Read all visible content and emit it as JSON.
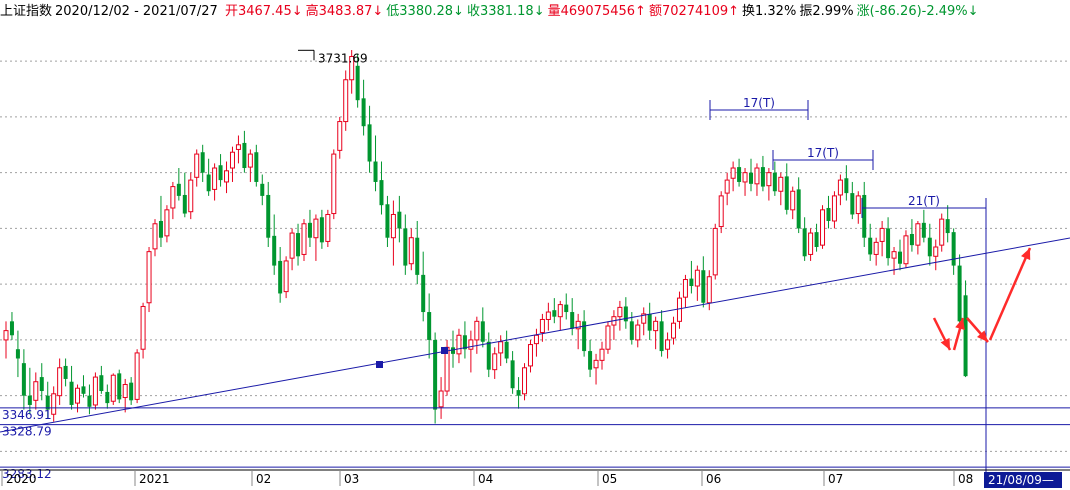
{
  "info": {
    "index_name": "上证指数",
    "date_range": "2020/12/02 - 2021/07/27",
    "open": "开3467.45↓",
    "high": "高3483.87↓",
    "low": "低3380.28↓",
    "close": "收3381.18↓",
    "volume": "量469075456↑",
    "amount": "额70274109↑",
    "turnover": "换1.32%",
    "amplitude": "振2.99%",
    "change": "涨(-86.26)-2.49%↓"
  },
  "colors": {
    "up": "#e8001c",
    "down": "#00962f",
    "grid": "#a0a0a0",
    "annotation": "#1a1aa8",
    "arrow": "#ff2b2b",
    "axis_text": "#000000",
    "watermark": "#d8d8d8"
  },
  "chart_data": {
    "type": "candlestick",
    "ylim": [
      3280,
      3760
    ],
    "grid": "dashed horizontal",
    "x_ticks": [
      "2020",
      "2021",
      "02",
      "03",
      "04",
      "05",
      "06",
      "07",
      "08"
    ],
    "price_labels": [
      "3346.91",
      "3328.79",
      "3283.12"
    ],
    "peak_label": "3731.69",
    "annotations": [
      "17(T)",
      "17(T)",
      "21(T)"
    ],
    "cursor_date": "21/08/09",
    "support_points": [
      {
        "date": "2021/03/09",
        "value": 3328.79
      },
      {
        "date": "2021/03/25",
        "value": 3346.91
      }
    ],
    "candles": [
      [
        3420,
        3440,
        3400,
        3430
      ],
      [
        3440,
        3450,
        3420,
        3425
      ],
      [
        3410,
        3430,
        3380,
        3400
      ],
      [
        3395,
        3410,
        3345,
        3360
      ],
      [
        3360,
        3390,
        3340,
        3350
      ],
      [
        3355,
        3385,
        3345,
        3375
      ],
      [
        3380,
        3395,
        3355,
        3365
      ],
      [
        3360,
        3375,
        3335,
        3345
      ],
      [
        3340,
        3370,
        3332,
        3362
      ],
      [
        3360,
        3400,
        3350,
        3390
      ],
      [
        3392,
        3400,
        3370,
        3378
      ],
      [
        3375,
        3392,
        3345,
        3350
      ],
      [
        3352,
        3372,
        3342,
        3368
      ],
      [
        3370,
        3382,
        3358,
        3362
      ],
      [
        3360,
        3372,
        3340,
        3348
      ],
      [
        3350,
        3385,
        3345,
        3380
      ],
      [
        3382,
        3392,
        3362,
        3365
      ],
      [
        3364,
        3372,
        3346,
        3352
      ],
      [
        3354,
        3384,
        3350,
        3382
      ],
      [
        3384,
        3388,
        3352,
        3356
      ],
      [
        3358,
        3378,
        3342,
        3372
      ],
      [
        3374,
        3380,
        3350,
        3355
      ],
      [
        3356,
        3410,
        3352,
        3406
      ],
      [
        3410,
        3460,
        3400,
        3456
      ],
      [
        3460,
        3520,
        3450,
        3515
      ],
      [
        3518,
        3550,
        3510,
        3545
      ],
      [
        3548,
        3575,
        3520,
        3530
      ],
      [
        3532,
        3565,
        3525,
        3560
      ],
      [
        3562,
        3590,
        3550,
        3585
      ],
      [
        3588,
        3605,
        3570,
        3575
      ],
      [
        3576,
        3600,
        3552,
        3556
      ],
      [
        3558,
        3600,
        3550,
        3592
      ],
      [
        3595,
        3625,
        3585,
        3620
      ],
      [
        3622,
        3630,
        3590,
        3600
      ],
      [
        3598,
        3615,
        3575,
        3580
      ],
      [
        3582,
        3610,
        3570,
        3605
      ],
      [
        3608,
        3620,
        3585,
        3592
      ],
      [
        3590,
        3612,
        3578,
        3602
      ],
      [
        3605,
        3628,
        3590,
        3622
      ],
      [
        3625,
        3640,
        3610,
        3630
      ],
      [
        3632,
        3645,
        3600,
        3605
      ],
      [
        3606,
        3625,
        3590,
        3620
      ],
      [
        3622,
        3630,
        3585,
        3590
      ],
      [
        3588,
        3598,
        3565,
        3575
      ],
      [
        3576,
        3590,
        3520,
        3530
      ],
      [
        3532,
        3555,
        3490,
        3500
      ],
      [
        3505,
        3520,
        3460,
        3470
      ],
      [
        3472,
        3510,
        3465,
        3505
      ],
      [
        3508,
        3540,
        3495,
        3535
      ],
      [
        3535,
        3545,
        3500,
        3510
      ],
      [
        3512,
        3550,
        3505,
        3545
      ],
      [
        3546,
        3560,
        3520,
        3530
      ],
      [
        3530,
        3555,
        3505,
        3550
      ],
      [
        3552,
        3560,
        3518,
        3525
      ],
      [
        3526,
        3560,
        3520,
        3555
      ],
      [
        3556,
        3625,
        3550,
        3620
      ],
      [
        3624,
        3660,
        3615,
        3655
      ],
      [
        3655,
        3710,
        3645,
        3700
      ],
      [
        3700,
        3732,
        3685,
        3725
      ],
      [
        3715,
        3728,
        3670,
        3678
      ],
      [
        3680,
        3700,
        3640,
        3650
      ],
      [
        3652,
        3672,
        3600,
        3612
      ],
      [
        3612,
        3640,
        3580,
        3590
      ],
      [
        3592,
        3612,
        3555,
        3565
      ],
      [
        3566,
        3575,
        3520,
        3530
      ],
      [
        3530,
        3570,
        3500,
        3555
      ],
      [
        3558,
        3575,
        3525,
        3540
      ],
      [
        3540,
        3555,
        3490,
        3500
      ],
      [
        3502,
        3540,
        3495,
        3530
      ],
      [
        3530,
        3548,
        3480,
        3490
      ],
      [
        3490,
        3515,
        3440,
        3450
      ],
      [
        3450,
        3470,
        3400,
        3420
      ],
      [
        3420,
        3428,
        3330,
        3345
      ],
      [
        3348,
        3380,
        3335,
        3365
      ],
      [
        3365,
        3420,
        3360,
        3412
      ],
      [
        3412,
        3430,
        3390,
        3405
      ],
      [
        3405,
        3432,
        3395,
        3425
      ],
      [
        3425,
        3440,
        3400,
        3410
      ],
      [
        3410,
        3430,
        3385,
        3420
      ],
      [
        3420,
        3445,
        3405,
        3440
      ],
      [
        3440,
        3455,
        3412,
        3418
      ],
      [
        3418,
        3428,
        3380,
        3388
      ],
      [
        3388,
        3412,
        3378,
        3405
      ],
      [
        3406,
        3425,
        3392,
        3418
      ],
      [
        3418,
        3430,
        3395,
        3400
      ],
      [
        3398,
        3408,
        3362,
        3368
      ],
      [
        3366,
        3380,
        3346,
        3360
      ],
      [
        3362,
        3395,
        3355,
        3390
      ],
      [
        3392,
        3420,
        3385,
        3415
      ],
      [
        3416,
        3432,
        3402,
        3425
      ],
      [
        3428,
        3448,
        3418,
        3442
      ],
      [
        3442,
        3460,
        3430,
        3450
      ],
      [
        3452,
        3465,
        3438,
        3445
      ],
      [
        3445,
        3462,
        3430,
        3458
      ],
      [
        3458,
        3470,
        3442,
        3450
      ],
      [
        3450,
        3465,
        3425,
        3432
      ],
      [
        3432,
        3448,
        3410,
        3440
      ],
      [
        3440,
        3452,
        3402,
        3408
      ],
      [
        3408,
        3420,
        3380,
        3388
      ],
      [
        3390,
        3405,
        3372,
        3398
      ],
      [
        3398,
        3418,
        3388,
        3410
      ],
      [
        3410,
        3440,
        3405,
        3435
      ],
      [
        3436,
        3452,
        3420,
        3445
      ],
      [
        3445,
        3462,
        3430,
        3455
      ],
      [
        3456,
        3466,
        3432,
        3440
      ],
      [
        3440,
        3450,
        3415,
        3420
      ],
      [
        3420,
        3442,
        3412,
        3436
      ],
      [
        3438,
        3455,
        3425,
        3448
      ],
      [
        3448,
        3460,
        3420,
        3430
      ],
      [
        3430,
        3445,
        3410,
        3440
      ],
      [
        3440,
        3452,
        3402,
        3408
      ],
      [
        3410,
        3428,
        3400,
        3420
      ],
      [
        3422,
        3445,
        3415,
        3438
      ],
      [
        3440,
        3472,
        3432,
        3465
      ],
      [
        3466,
        3490,
        3455,
        3485
      ],
      [
        3486,
        3505,
        3470,
        3478
      ],
      [
        3478,
        3500,
        3462,
        3495
      ],
      [
        3495,
        3510,
        3455,
        3460
      ],
      [
        3460,
        3495,
        3452,
        3488
      ],
      [
        3490,
        3545,
        3485,
        3540
      ],
      [
        3542,
        3580,
        3535,
        3575
      ],
      [
        3578,
        3600,
        3565,
        3592
      ],
      [
        3594,
        3612,
        3580,
        3605
      ],
      [
        3606,
        3615,
        3585,
        3590
      ],
      [
        3590,
        3605,
        3575,
        3600
      ],
      [
        3600,
        3615,
        3580,
        3588
      ],
      [
        3588,
        3610,
        3575,
        3605
      ],
      [
        3606,
        3618,
        3580,
        3585
      ],
      [
        3586,
        3605,
        3570,
        3600
      ],
      [
        3600,
        3612,
        3575,
        3580
      ],
      [
        3580,
        3600,
        3565,
        3595
      ],
      [
        3596,
        3610,
        3555,
        3560
      ],
      [
        3560,
        3585,
        3550,
        3580
      ],
      [
        3582,
        3595,
        3535,
        3540
      ],
      [
        3540,
        3552,
        3505,
        3510
      ],
      [
        3512,
        3540,
        3505,
        3535
      ],
      [
        3536,
        3545,
        3515,
        3520
      ],
      [
        3522,
        3565,
        3518,
        3560
      ],
      [
        3562,
        3575,
        3540,
        3548
      ],
      [
        3548,
        3580,
        3540,
        3575
      ],
      [
        3576,
        3598,
        3565,
        3592
      ],
      [
        3594,
        3608,
        3570,
        3578
      ],
      [
        3578,
        3590,
        3550,
        3555
      ],
      [
        3556,
        3580,
        3545,
        3575
      ],
      [
        3576,
        3590,
        3520,
        3530
      ],
      [
        3530,
        3545,
        3505,
        3512
      ],
      [
        3512,
        3530,
        3500,
        3525
      ],
      [
        3526,
        3548,
        3510,
        3540
      ],
      [
        3540,
        3552,
        3500,
        3508
      ],
      [
        3508,
        3520,
        3490,
        3515
      ],
      [
        3515,
        3528,
        3495,
        3502
      ],
      [
        3502,
        3538,
        3498,
        3532
      ],
      [
        3534,
        3550,
        3515,
        3522
      ],
      [
        3522,
        3548,
        3512,
        3545
      ],
      [
        3546,
        3560,
        3525,
        3530
      ],
      [
        3530,
        3545,
        3500,
        3510
      ],
      [
        3510,
        3528,
        3495,
        3520
      ],
      [
        3522,
        3556,
        3515,
        3550
      ],
      [
        3550,
        3565,
        3525,
        3535
      ],
      [
        3536,
        3540,
        3490,
        3500
      ],
      [
        3500,
        3512,
        3430,
        3440
      ],
      [
        3468,
        3484,
        3380,
        3381
      ]
    ]
  }
}
